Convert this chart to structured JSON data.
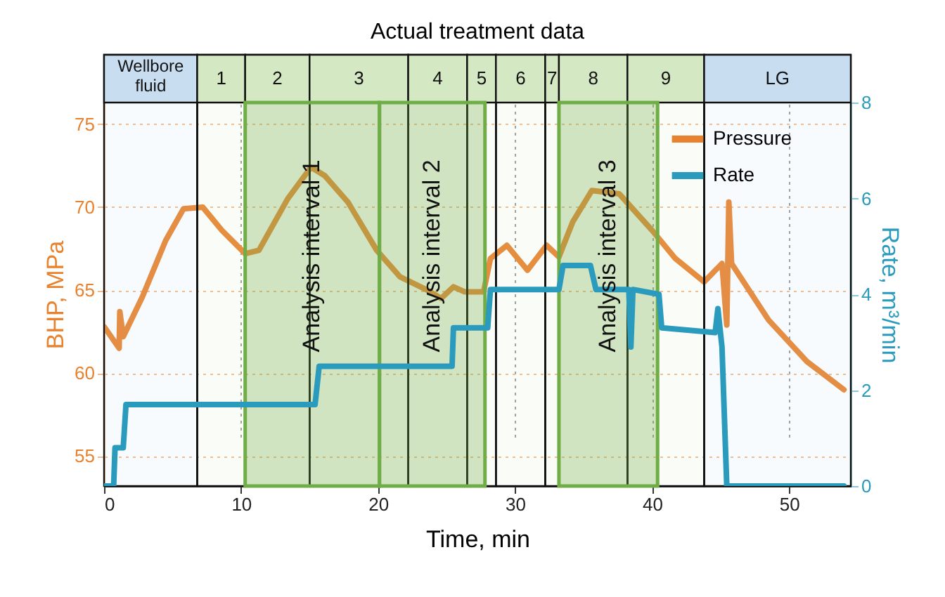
{
  "chart_data": {
    "type": "line",
    "title": "Actual treatment data",
    "xlabel": "Time, min",
    "ylabel": "BHP, MPa",
    "y2label": "Rate, m³/min",
    "xlim": [
      0,
      54.5
    ],
    "xticks": [
      0,
      10,
      20,
      30,
      40,
      50
    ],
    "ylim": [
      53.2,
      76.3
    ],
    "yticks": [
      55,
      60,
      65,
      70,
      75
    ],
    "y2lim": [
      0,
      8
    ],
    "y2ticks": [
      0,
      2,
      4,
      6,
      8
    ],
    "grid": true,
    "legend": "top right",
    "line_style": "solid",
    "marker": "none",
    "series": [
      {
        "name": "Pressure",
        "color": "#e8822e",
        "x": [
          0,
          1.1,
          1.15,
          1.4,
          2.8,
          4.5,
          5.8,
          7.2,
          8.6,
          10.3,
          11.3,
          13.4,
          15.1,
          16.1,
          17.8,
          19.9,
          21.6,
          23.6,
          24.6,
          25.5,
          26.3,
          27.7,
          28.2,
          29.4,
          30.9,
          32.3,
          33.2,
          34.2,
          35.6,
          37.6,
          40.0,
          41.7,
          43.8,
          45.1,
          45.45,
          45.6,
          45.8,
          48.5,
          51.3,
          54.0
        ],
        "values": [
          62.8,
          61.5,
          63.7,
          62.2,
          64.6,
          68.0,
          69.9,
          70.0,
          68.6,
          67.2,
          67.4,
          70.5,
          72.4,
          71.9,
          70.3,
          67.4,
          65.8,
          65.0,
          64.5,
          65.2,
          64.9,
          64.9,
          66.9,
          67.7,
          66.2,
          67.7,
          67.0,
          69.1,
          71.0,
          70.8,
          68.6,
          66.9,
          65.5,
          66.6,
          62.9,
          70.3,
          66.6,
          63.2,
          60.7,
          59.0
        ]
      },
      {
        "name": "Rate",
        "color": "#2a9bbd",
        "axis": "y2",
        "x": [
          0,
          0.7,
          0.8,
          1.4,
          1.6,
          2.1,
          15.4,
          15.7,
          25.4,
          25.5,
          28.0,
          28.2,
          33.2,
          33.5,
          35.5,
          35.9,
          38.3,
          38.45,
          38.6,
          40.5,
          40.7,
          44.6,
          44.8,
          45.1,
          45.45,
          54.0
        ],
        "values": [
          0,
          0,
          0.8,
          0.8,
          1.7,
          1.7,
          1.7,
          2.5,
          2.5,
          3.3,
          3.3,
          4.1,
          4.1,
          4.6,
          4.6,
          4.1,
          4.1,
          2.9,
          4.1,
          4.0,
          3.3,
          3.2,
          3.7,
          2.9,
          0,
          0
        ]
      }
    ],
    "bands": [
      {
        "axis": "x",
        "from": 0,
        "to": 6.8,
        "label": "Wellbore fluid",
        "color": "#c9ddf1"
      },
      {
        "axis": "x",
        "from": 6.8,
        "to": 10.3,
        "label": "1",
        "color": "#d5e8c4"
      },
      {
        "axis": "x",
        "from": 10.3,
        "to": 15.0,
        "label": "2",
        "color": "#d5e8c4"
      },
      {
        "axis": "x",
        "from": 15.0,
        "to": 22.2,
        "label": "3",
        "color": "#d5e8c4"
      },
      {
        "axis": "x",
        "from": 22.2,
        "to": 26.5,
        "label": "4",
        "color": "#d5e8c4"
      },
      {
        "axis": "x",
        "from": 26.5,
        "to": 28.6,
        "label": "5",
        "color": "#d5e8c4"
      },
      {
        "axis": "x",
        "from": 28.6,
        "to": 32.2,
        "label": "6",
        "color": "#d5e8c4"
      },
      {
        "axis": "x",
        "from": 32.2,
        "to": 33.2,
        "label": "7",
        "color": "#d5e8c4"
      },
      {
        "axis": "x",
        "from": 33.2,
        "to": 38.2,
        "label": "8",
        "color": "#d5e8c4"
      },
      {
        "axis": "x",
        "from": 38.2,
        "to": 43.8,
        "label": "9",
        "color": "#d5e8c4"
      },
      {
        "axis": "x",
        "from": 43.8,
        "to": 54.5,
        "label": "LG",
        "color": "#c9ddf1"
      },
      {
        "axis": "x",
        "from": 10.3,
        "to": 20.1,
        "label": "Analysis interval 1",
        "color": "#70ad47"
      },
      {
        "axis": "x",
        "from": 20.1,
        "to": 27.8,
        "label": "Analysis interval 2",
        "color": "#70ad47"
      },
      {
        "axis": "x",
        "from": 33.2,
        "to": 40.4,
        "label": "Analysis interval 3",
        "color": "#70ad47"
      }
    ]
  }
}
